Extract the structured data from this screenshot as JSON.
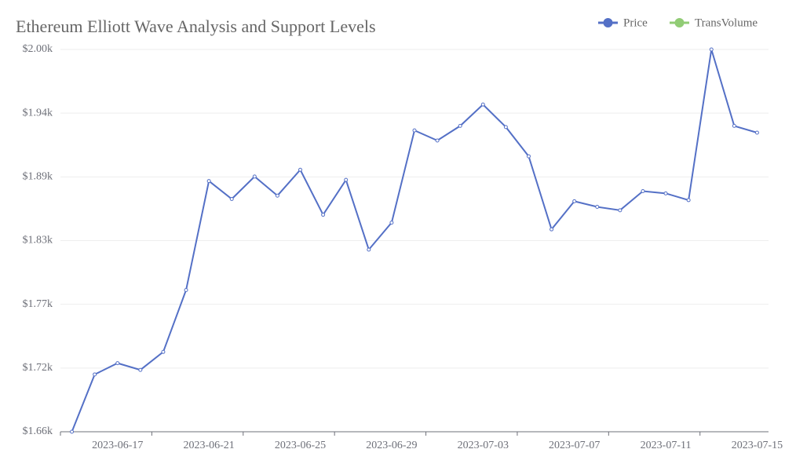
{
  "chart_data": {
    "type": "line",
    "title": "Ethereum Elliott Wave Analysis and Support Levels",
    "x": [
      "2023-06-15",
      "2023-06-16",
      "2023-06-17",
      "2023-06-18",
      "2023-06-19",
      "2023-06-20",
      "2023-06-21",
      "2023-06-22",
      "2023-06-23",
      "2023-06-24",
      "2023-06-25",
      "2023-06-26",
      "2023-06-27",
      "2023-06-28",
      "2023-06-29",
      "2023-06-30",
      "2023-07-01",
      "2023-07-02",
      "2023-07-03",
      "2023-07-04",
      "2023-07-05",
      "2023-07-06",
      "2023-07-07",
      "2023-07-08",
      "2023-07-09",
      "2023-07-10",
      "2023-07-11",
      "2023-07-12",
      "2023-07-13",
      "2023-07-14",
      "2023-07-15"
    ],
    "series": [
      {
        "name": "Price",
        "color": "#5470c6",
        "values": [
          1660,
          1711,
          1721,
          1715,
          1731,
          1786,
          1883,
          1867,
          1887,
          1870,
          1893,
          1853,
          1884,
          1822,
          1846,
          1928,
          1919,
          1932,
          1951,
          1931,
          1905,
          1840,
          1865,
          1860,
          1857,
          1874,
          1872,
          1866,
          2000,
          1932,
          1926
        ]
      },
      {
        "name": "TransVolume",
        "color": "#91cc75",
        "values": [
          null,
          null,
          null,
          null,
          null,
          null,
          null,
          null,
          null,
          null,
          null,
          null,
          null,
          null,
          null,
          null,
          null,
          null,
          null,
          null,
          null,
          null,
          null,
          null,
          null,
          null,
          null,
          null,
          null,
          null,
          null
        ]
      }
    ],
    "ylim": [
      1660,
      2000
    ],
    "yticks": [
      {
        "value": 1660,
        "label": "$1.66k"
      },
      {
        "value": 1716.67,
        "label": "$1.72k"
      },
      {
        "value": 1773.33,
        "label": "$1.77k"
      },
      {
        "value": 1830,
        "label": "$1.83k"
      },
      {
        "value": 1886.67,
        "label": "$1.89k"
      },
      {
        "value": 1943.33,
        "label": "$1.94k"
      },
      {
        "value": 2000,
        "label": "$2.00k"
      }
    ],
    "xticks": [
      "2023-06-17",
      "2023-06-21",
      "2023-06-25",
      "2023-06-29",
      "2023-07-03",
      "2023-07-07",
      "2023-07-11",
      "2023-07-15"
    ],
    "grid": true
  }
}
